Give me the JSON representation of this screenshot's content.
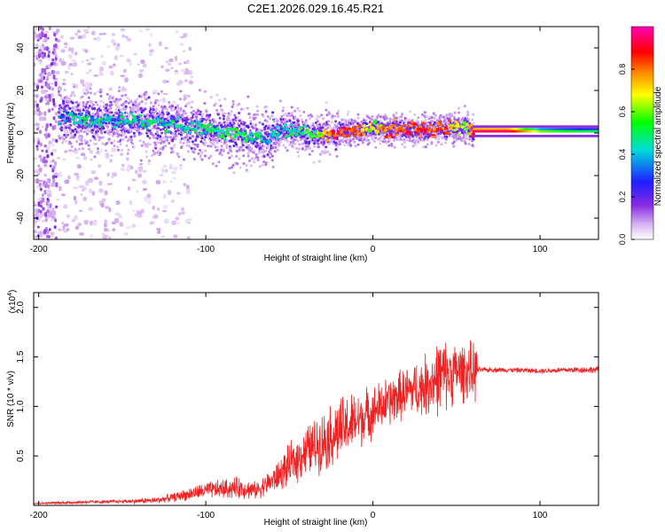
{
  "page_title": "C2E1.2026.029.16.45.R21",
  "chart_data": [
    {
      "type": "heatmap",
      "title": "C2E1.2026.029.16.45.R21",
      "xlabel": "Height of straight line (km)",
      "ylabel": "Frequency (Hz)",
      "xlim": [
        -203,
        135
      ],
      "ylim": [
        -50,
        50
      ],
      "xticks": [
        -200,
        -100,
        0,
        100
      ],
      "xtick_labels": [
        "-200",
        "-100",
        "0",
        "100"
      ],
      "yticks": [
        -40,
        -20,
        0,
        20,
        40
      ],
      "ytick_labels": [
        "-40",
        "-20",
        "0",
        "20",
        "40"
      ],
      "colorbar": {
        "label": "Normalized spectral amplitude",
        "range": [
          0,
          1
        ],
        "ticks": [
          0.0,
          0.2,
          0.4,
          0.6,
          0.8
        ],
        "tick_labels": [
          "0.0",
          "0.2",
          "0.4",
          "0.6",
          "0.8"
        ],
        "colors": [
          "#ffffff",
          "#d7b4f0",
          "#8a2be2",
          "#1e1eff",
          "#00dcdc",
          "#00ff00",
          "#ffff00",
          "#ff8c00",
          "#ff0000",
          "#ff00b4"
        ]
      },
      "ridge": {
        "description": "dominant frequency track",
        "x": [
          -188,
          -170,
          -150,
          -130,
          -110,
          -90,
          -75,
          -65,
          -55,
          -45,
          -35,
          -25,
          -10,
          0,
          10,
          25,
          40,
          55,
          60,
          80,
          100,
          135
        ],
        "freq": [
          8,
          6,
          6,
          5,
          3,
          1,
          -2,
          -3,
          2,
          1,
          -1,
          0,
          1,
          2,
          2,
          1,
          2,
          3,
          1,
          1,
          0,
          0
        ],
        "amplitude": [
          0.4,
          0.45,
          0.45,
          0.45,
          0.45,
          0.5,
          0.5,
          0.45,
          0.45,
          0.5,
          0.55,
          0.85,
          0.85,
          0.6,
          0.85,
          0.85,
          0.85,
          0.55,
          0.95,
          0.95,
          0.6,
          0.5
        ]
      }
    },
    {
      "type": "line",
      "xlabel": "Height of straight line (km)",
      "ylabel": "SNR (10 * v/v)",
      "y_multiplier": "(x10",
      "y_multiplier_exp": "4",
      "xlim": [
        -203,
        135
      ],
      "ylim": [
        0,
        2.15
      ],
      "xticks": [
        -200,
        -100,
        0,
        100
      ],
      "xtick_labels": [
        "-200",
        "-100",
        "0",
        "100"
      ],
      "yticks": [
        0.5,
        1.0,
        1.5,
        2.0
      ],
      "ytick_labels": [
        "0.5",
        "1.0",
        "1.5",
        "2.0"
      ],
      "series": [
        {
          "name": "SNR",
          "color": "#ee2222",
          "envelope_x": [
            -203,
            -180,
            -150,
            -130,
            -120,
            -100,
            -80,
            -70,
            -60,
            -50,
            -40,
            -30,
            -20,
            -10,
            0,
            10,
            20,
            30,
            40,
            50,
            62,
            63,
            80,
            100,
            120,
            135
          ],
          "envelope_mean": [
            0.02,
            0.03,
            0.04,
            0.05,
            0.08,
            0.15,
            0.18,
            0.15,
            0.25,
            0.4,
            0.55,
            0.65,
            0.75,
            0.85,
            0.95,
            1.05,
            1.15,
            1.2,
            1.3,
            1.35,
            1.35,
            1.37,
            1.37,
            1.36,
            1.37,
            1.37
          ],
          "envelope_spread": [
            0.01,
            0.02,
            0.02,
            0.04,
            0.05,
            0.1,
            0.13,
            0.1,
            0.15,
            0.25,
            0.3,
            0.35,
            0.4,
            0.35,
            0.3,
            0.3,
            0.3,
            0.35,
            0.45,
            0.35,
            0.35,
            0.03,
            0.03,
            0.03,
            0.04,
            0.04
          ]
        }
      ]
    }
  ]
}
